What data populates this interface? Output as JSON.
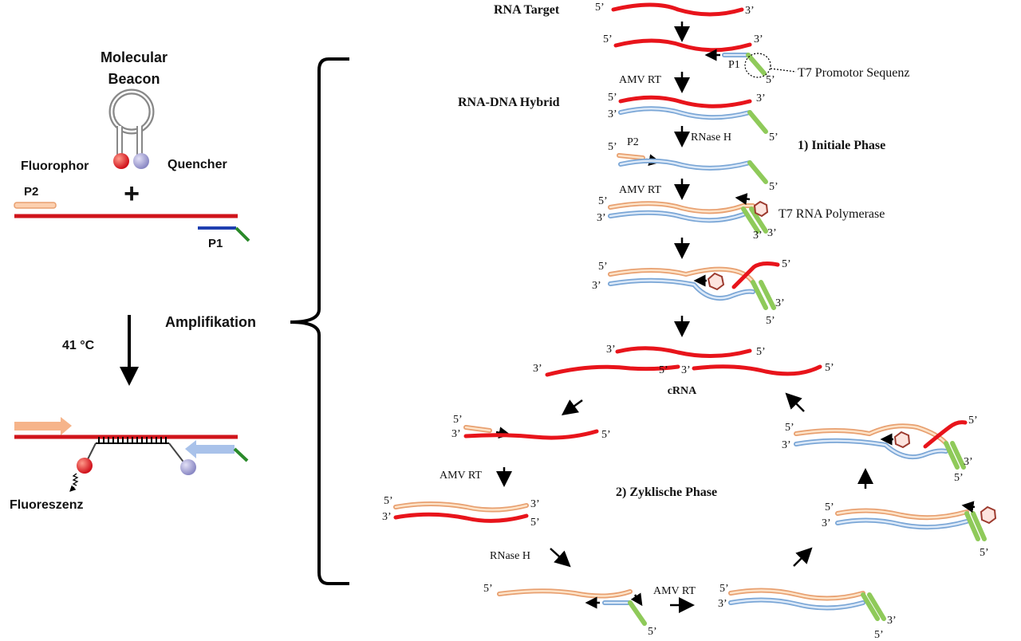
{
  "left": {
    "title_line1": "Molecular",
    "title_line2": "Beacon",
    "fluorophor": "Fluorophor",
    "quencher": "Quencher",
    "plus": "+",
    "p2": "P2",
    "p1": "P1",
    "amplifikation": "Amplifikation",
    "temperature": "41 °C",
    "fluoreszenz": "Fluoreszenz"
  },
  "right": {
    "rna_target": "RNA Target",
    "rna_dna_hybrid": "RNA-DNA Hybrid",
    "t7_promotor": "T7 Promotor Sequenz",
    "p1": "P1",
    "p2": "P2",
    "amv_rt": "AMV RT",
    "rnase_h": "RNase H",
    "initiale_phase": "1) Initiale Phase",
    "t7_polymerase": "T7 RNA Polymerase",
    "crna": "cRNA",
    "zyklische_phase": "2) Zyklische Phase",
    "five": "5’",
    "three": "3’"
  },
  "colors": {
    "rna": "#e8141b",
    "dna_orange": "#e8a070",
    "dna_blue": "#7aa6d6",
    "promoter_green": "#8fca5a",
    "p1_blue": "#1f3fb0",
    "fluorophor": "#e8141b",
    "quencher": "#9a98cc"
  }
}
